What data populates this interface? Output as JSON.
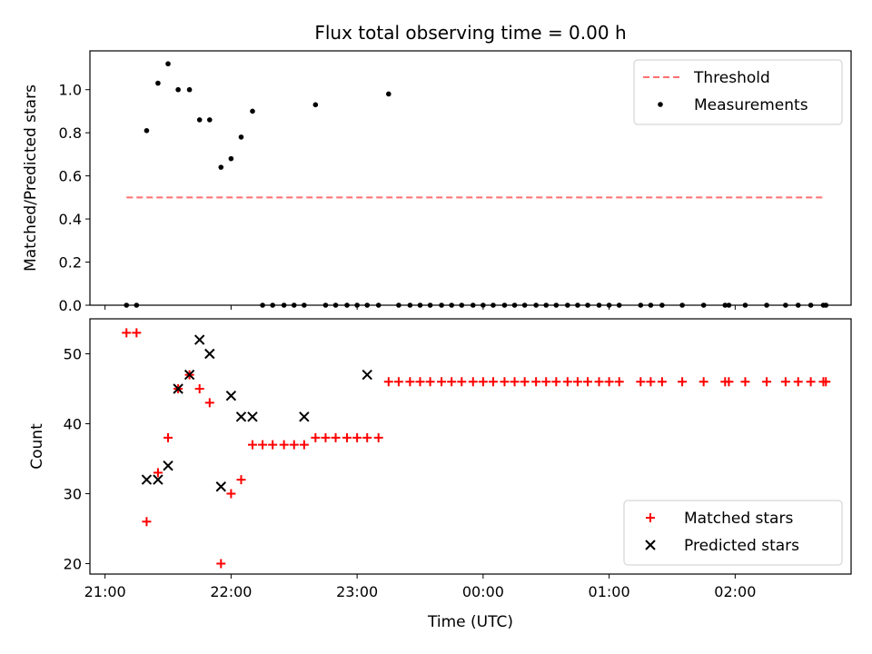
{
  "chart_data": [
    {
      "type": "scatter",
      "title": "Flux total observing time = 0.00 h",
      "xlabel": "",
      "ylabel": "Matched/Predicted stars",
      "x_unit": "hours since 21:00 UTC",
      "xlim": [
        -0.12,
        5.92
      ],
      "ylim": [
        0.0,
        1.18
      ],
      "yticks": [
        0.0,
        0.2,
        0.4,
        0.6,
        0.8,
        1.0
      ],
      "yticklabels": [
        "0.0",
        "0.2",
        "0.4",
        "0.6",
        "0.8",
        "1.0"
      ],
      "legend": {
        "placement": "top-right",
        "entries": [
          "Threshold",
          "Measurements"
        ]
      },
      "series": [
        {
          "name": "Threshold",
          "kind": "line",
          "style": "dashed",
          "color": "#ff7070",
          "x": [
            0.17,
            5.7
          ],
          "y": [
            0.5,
            0.5
          ]
        },
        {
          "name": "Measurements",
          "kind": "scatter",
          "color": "#000000",
          "x": [
            0.17,
            0.25,
            0.33,
            0.42,
            0.5,
            0.58,
            0.67,
            0.75,
            0.83,
            0.92,
            1.0,
            1.08,
            1.17,
            1.25,
            1.33,
            1.42,
            1.5,
            1.58,
            1.67,
            1.75,
            1.83,
            1.92,
            2.0,
            2.08,
            2.17,
            2.25,
            2.33,
            2.42,
            2.5,
            2.58,
            2.67,
            2.75,
            2.83,
            2.92,
            3.0,
            3.08,
            3.17,
            3.25,
            3.33,
            3.42,
            3.5,
            3.58,
            3.67,
            3.75,
            3.83,
            3.92,
            4.0,
            4.08,
            4.25,
            4.33,
            4.42,
            4.58,
            4.75,
            4.92,
            4.95,
            5.08,
            5.25,
            5.4,
            5.5,
            5.6,
            5.7,
            5.72
          ],
          "y": [
            0.0,
            0.0,
            0.81,
            1.03,
            1.12,
            1.0,
            1.0,
            0.86,
            0.86,
            0.64,
            0.68,
            0.78,
            0.9,
            0.0,
            0.0,
            0.0,
            0.0,
            0.0,
            0.93,
            0.0,
            0.0,
            0.0,
            0.0,
            0.0,
            0.0,
            0.98,
            0.0,
            0.0,
            0.0,
            0.0,
            0.0,
            0.0,
            0.0,
            0.0,
            0.0,
            0.0,
            0.0,
            0.0,
            0.0,
            0.0,
            0.0,
            0.0,
            0.0,
            0.0,
            0.0,
            0.0,
            0.0,
            0.0,
            0.0,
            0.0,
            0.0,
            0.0,
            0.0,
            0.0,
            0.0,
            0.0,
            0.0,
            0.0,
            0.0,
            0.0,
            0.0,
            0.0
          ]
        }
      ]
    },
    {
      "type": "scatter",
      "title": "",
      "xlabel": "Time (UTC)",
      "ylabel": "Count",
      "x_unit": "hours since 21:00 UTC",
      "xlim": [
        -0.12,
        5.92
      ],
      "ylim": [
        18.5,
        55.0
      ],
      "yticks": [
        20,
        30,
        40,
        50
      ],
      "yticklabels": [
        "20",
        "30",
        "40",
        "50"
      ],
      "xticks": [
        0,
        1,
        2,
        3,
        4,
        5
      ],
      "xticklabels": [
        "21:00",
        "22:00",
        "23:00",
        "00:00",
        "01:00",
        "02:00"
      ],
      "legend": {
        "placement": "bottom-right",
        "entries": [
          "Matched stars",
          "Predicted stars"
        ]
      },
      "series": [
        {
          "name": "Matched stars",
          "marker": "plus",
          "color": "#ff0000",
          "x": [
            0.17,
            0.25,
            0.33,
            0.42,
            0.5,
            0.58,
            0.67,
            0.75,
            0.83,
            0.92,
            1.0,
            1.08,
            1.17,
            1.25,
            1.33,
            1.42,
            1.5,
            1.58,
            1.67,
            1.75,
            1.83,
            1.92,
            2.0,
            2.08,
            2.17,
            2.25,
            2.33,
            2.42,
            2.5,
            2.58,
            2.67,
            2.75,
            2.83,
            2.92,
            3.0,
            3.08,
            3.17,
            3.25,
            3.33,
            3.42,
            3.5,
            3.58,
            3.67,
            3.75,
            3.83,
            3.92,
            4.0,
            4.08,
            4.25,
            4.33,
            4.42,
            4.58,
            4.75,
            4.92,
            4.95,
            5.08,
            5.25,
            5.4,
            5.5,
            5.6,
            5.7,
            5.72
          ],
          "y": [
            53,
            53,
            26,
            33,
            38,
            45,
            47,
            45,
            43,
            20,
            30,
            32,
            37,
            37,
            37,
            37,
            37,
            37,
            38,
            38,
            38,
            38,
            38,
            38,
            38,
            46,
            46,
            46,
            46,
            46,
            46,
            46,
            46,
            46,
            46,
            46,
            46,
            46,
            46,
            46,
            46,
            46,
            46,
            46,
            46,
            46,
            46,
            46,
            46,
            46,
            46,
            46,
            46,
            46,
            46,
            46,
            46,
            46,
            46,
            46,
            46,
            46
          ]
        },
        {
          "name": "Predicted stars",
          "marker": "x",
          "color": "#000000",
          "x": [
            0.33,
            0.42,
            0.5,
            0.58,
            0.67,
            0.75,
            0.83,
            0.92,
            1.0,
            1.08,
            1.17,
            1.58,
            2.08
          ],
          "y": [
            32,
            32,
            34,
            45,
            47,
            52,
            50,
            31,
            44,
            41,
            41,
            41,
            47
          ]
        }
      ]
    }
  ]
}
